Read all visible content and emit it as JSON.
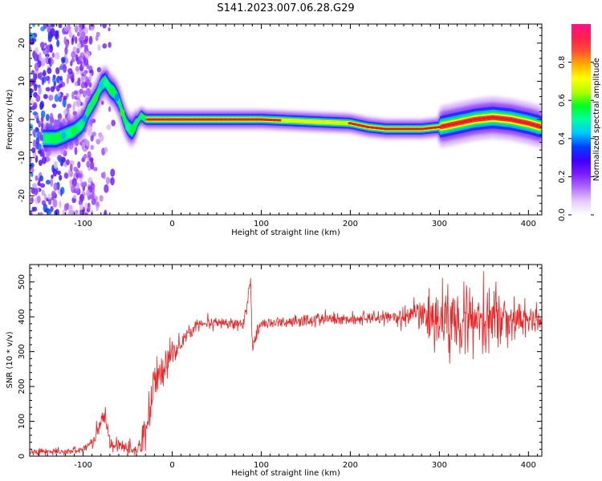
{
  "title": "S141.2023.007.06.28.G29",
  "colors": {
    "snr_line": "#ee2222",
    "ridge": "#e02020",
    "colormap": [
      "#ffffff",
      "#e6ccff",
      "#b26bff",
      "#7a1cff",
      "#3c00ff",
      "#0040ff",
      "#00c8ff",
      "#00ffa0",
      "#00ff20",
      "#b0ff00",
      "#ffff00",
      "#ffb000",
      "#ff5030",
      "#ff2050",
      "#ff1088"
    ]
  },
  "chart_data": [
    {
      "type": "heatmap",
      "xlabel": "Height of straight line (km)",
      "ylabel": "Frequency (Hz)",
      "xlim": [
        -160,
        415
      ],
      "ylim": [
        -25,
        25
      ],
      "xticks": [
        -100,
        0,
        100,
        200,
        300,
        400
      ],
      "xtick_labels": [
        "-100",
        "0",
        "100",
        "200",
        "300",
        "400"
      ],
      "yticks": [
        -20,
        -10,
        0,
        10,
        20
      ],
      "ytick_labels": [
        "-20",
        "-10",
        "0",
        "10",
        "20"
      ],
      "colorbar": {
        "label": "Normalized spectral amplitude",
        "range": [
          0,
          1
        ],
        "ticks": [
          0.0,
          0.2,
          0.4,
          0.6,
          0.8
        ],
        "tick_labels": [
          "0.0",
          "0.2",
          "0.4",
          "0.6",
          "0.8"
        ]
      },
      "ridge": {
        "x": [
          -140,
          -130,
          -120,
          -110,
          -100,
          -95,
          -90,
          -85,
          -80,
          -75,
          -70,
          -65,
          -60,
          -55,
          -50,
          -45,
          -40,
          -35,
          -30,
          -20,
          0,
          40,
          100,
          150,
          200,
          220,
          240,
          260,
          280,
          300,
          320,
          340,
          360,
          380,
          400,
          415
        ],
        "y": [
          -5,
          -5,
          -4,
          -3,
          -1,
          2,
          4,
          6,
          9,
          10,
          8,
          7,
          5,
          1,
          -2,
          -3,
          -1,
          1,
          0,
          0,
          0,
          0,
          0,
          -0.5,
          -1,
          -2,
          -2.5,
          -2.5,
          -2.5,
          -2,
          -1,
          0,
          0.5,
          0,
          -1,
          -2
        ]
      }
    },
    {
      "type": "line",
      "xlabel": "Height of straight line (km)",
      "ylabel": "SNR (10 * v/v)",
      "xlim": [
        -160,
        415
      ],
      "ylim": [
        0,
        550
      ],
      "xticks": [
        -100,
        0,
        100,
        200,
        300,
        400
      ],
      "xtick_labels": [
        "-100",
        "0",
        "100",
        "200",
        "300",
        "400"
      ],
      "yticks": [
        0,
        100,
        200,
        300,
        400,
        500
      ],
      "ytick_labels": [
        "0",
        "100",
        "200",
        "300",
        "400",
        "500"
      ],
      "series": [
        {
          "x": [
            -160,
            -120,
            -100,
            -90,
            -80,
            -75,
            -70,
            -60,
            -50,
            -40,
            -30,
            -25,
            -20,
            -10,
            0,
            10,
            20,
            30,
            40,
            60,
            80,
            88,
            90,
            100,
            150,
            200,
            250,
            280,
            300,
            320,
            340,
            360,
            380,
            400,
            415
          ],
          "y": [
            12,
            12,
            20,
            40,
            90,
            120,
            40,
            30,
            20,
            15,
            60,
            150,
            220,
            250,
            300,
            320,
            360,
            380,
            380,
            380,
            380,
            500,
            320,
            380,
            390,
            395,
            400,
            400,
            390,
            400,
            400,
            400,
            390,
            390,
            390
          ],
          "amplitude": [
            8,
            8,
            10,
            15,
            30,
            20,
            25,
            20,
            15,
            15,
            50,
            60,
            50,
            40,
            35,
            25,
            20,
            15,
            15,
            15,
            15,
            20,
            20,
            15,
            15,
            15,
            20,
            40,
            90,
            90,
            80,
            80,
            50,
            40,
            40
          ]
        }
      ]
    }
  ]
}
